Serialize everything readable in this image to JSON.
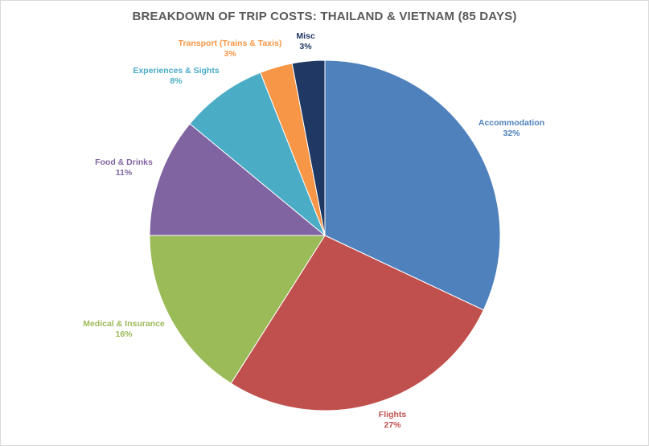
{
  "chart_data": {
    "type": "pie",
    "title": "BREAKDOWN OF TRIP COSTS: THAILAND & VIETNAM (85 DAYS)",
    "slices": [
      {
        "label": "Accommodation",
        "value": 32,
        "pct_label": "32%",
        "color": "#4F81BD"
      },
      {
        "label": "Flights",
        "value": 27,
        "pct_label": "27%",
        "color": "#C0504D"
      },
      {
        "label": "Medical & Insurance",
        "value": 16,
        "pct_label": "16%",
        "color": "#9BBB59"
      },
      {
        "label": "Food & Drinks",
        "value": 11,
        "pct_label": "11%",
        "color": "#8064A2"
      },
      {
        "label": "Experiences & Sights",
        "value": 8,
        "pct_label": "8%",
        "color": "#4BACC6"
      },
      {
        "label": "Transport (Trains & Taxis)",
        "value": 3,
        "pct_label": "3%",
        "color": "#F79646"
      },
      {
        "label": "Misc",
        "value": 3,
        "pct_label": "3%",
        "color": "#1F3864"
      }
    ],
    "start_angle": "12 o'clock",
    "direction": "clockwise",
    "legend": "none (data labels outside slices)"
  }
}
